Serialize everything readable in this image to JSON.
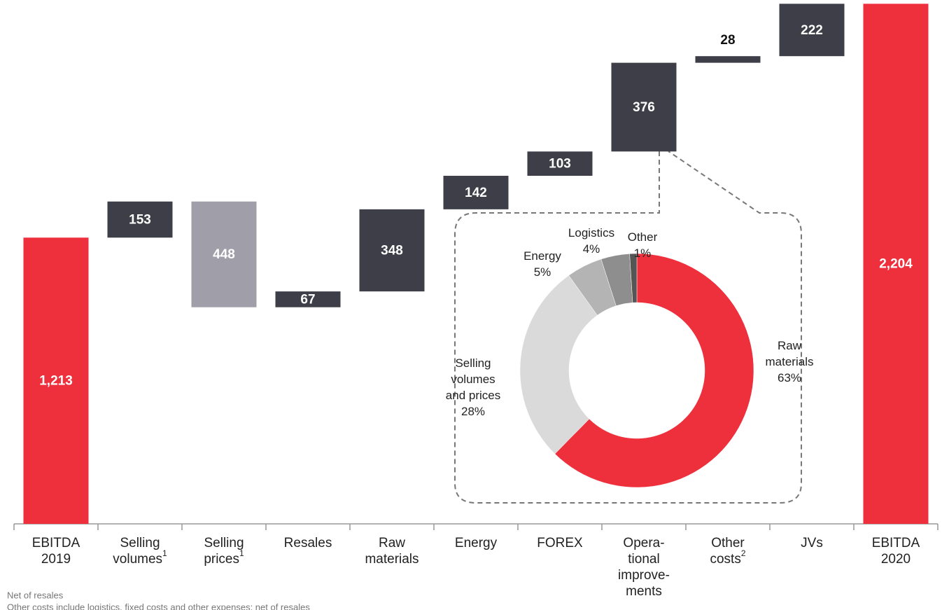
{
  "chart_data": [
    {
      "type": "waterfall",
      "categories": [
        [
          "EBITDA",
          "2019"
        ],
        [
          "Selling",
          "volumes"
        ],
        [
          "Selling",
          "prices"
        ],
        [
          "Resales"
        ],
        [
          "Raw",
          "materials"
        ],
        [
          "Energy"
        ],
        [
          "FOREX"
        ],
        [
          "Opera-",
          "tional",
          "improve-",
          "ments"
        ],
        [
          "Other",
          "costs"
        ],
        [
          "JVs"
        ],
        [
          "EBITDA",
          "2020"
        ]
      ],
      "category_notes": [
        null,
        "1",
        "1",
        null,
        null,
        null,
        null,
        null,
        "2",
        null,
        null
      ],
      "values": [
        1213,
        153,
        -448,
        67,
        348,
        142,
        103,
        376,
        28,
        222,
        2204
      ],
      "value_labels": [
        "1,213",
        "153",
        "448",
        "67",
        "348",
        "142",
        "103",
        "376",
        "28",
        "222",
        "2,204"
      ],
      "colors": {
        "total": "#ee2f3c",
        "increase": "#3e3e48",
        "decrease": "#a09fa9"
      },
      "ylim": [
        0,
        2220
      ]
    },
    {
      "type": "donut",
      "categories": [
        [
          "Raw",
          "materials"
        ],
        [
          "Selling",
          "volumes",
          "and prices"
        ],
        [
          "Energy"
        ],
        [
          "Logistics"
        ],
        [
          "Other"
        ]
      ],
      "values": [
        63,
        28,
        5,
        4,
        1
      ],
      "value_labels": [
        "63%",
        "28%",
        "5%",
        "4%",
        "1%"
      ],
      "colors": [
        "#ee2f3c",
        "#dadada",
        "#b4b4b4",
        "#8e8e8e",
        "#555555"
      ]
    }
  ],
  "footnotes": [
    "Net of resales",
    "Other costs include logistics, fixed costs and other expenses; net of resales"
  ]
}
